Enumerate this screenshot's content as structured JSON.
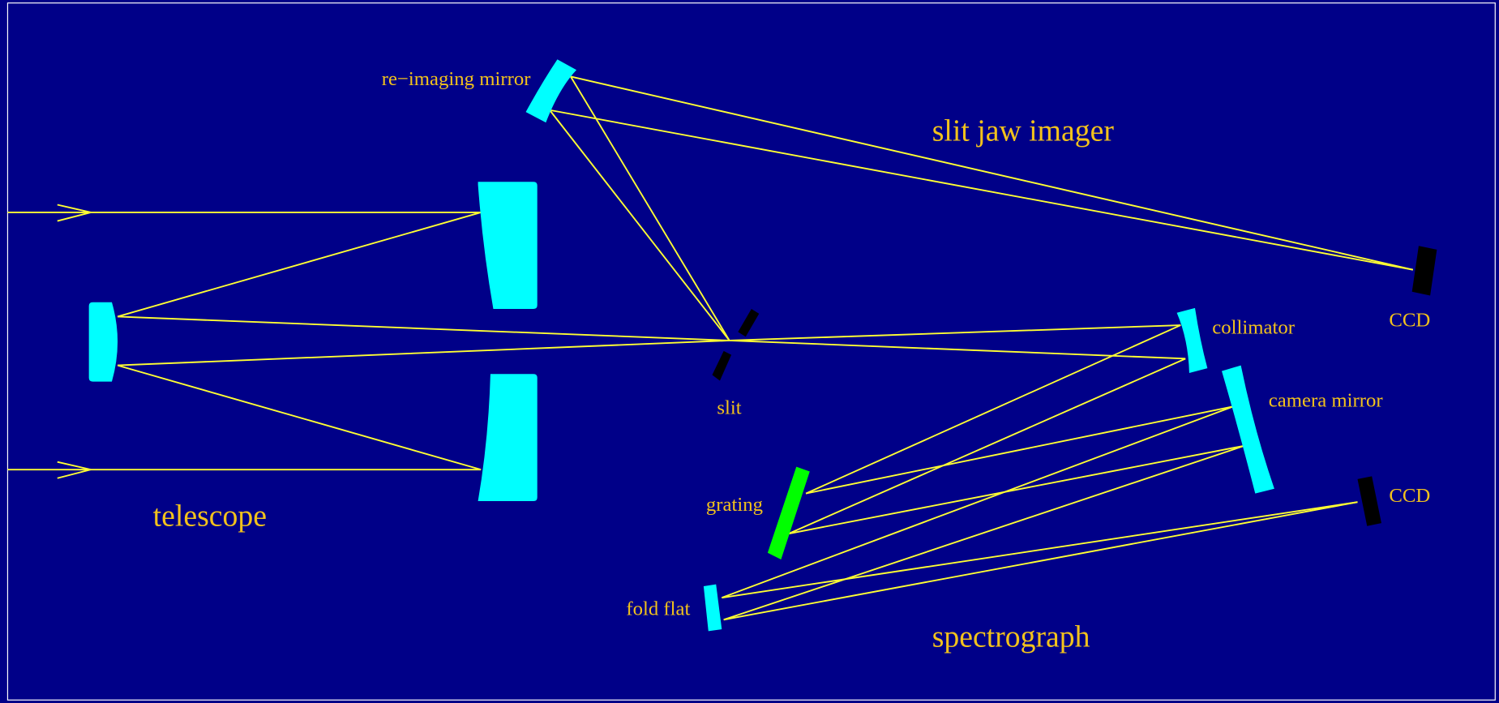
{
  "labels": {
    "reimaging_mirror": "re−imaging mirror",
    "slit_jaw_imager": "slit jaw imager",
    "telescope": "telescope",
    "slit": "slit",
    "collimator": "collimator",
    "camera_mirror": "camera mirror",
    "ccd_top": "CCD",
    "ccd_bottom": "CCD",
    "grating": "grating",
    "fold_flat": "fold flat",
    "spectrograph": "spectrograph"
  }
}
